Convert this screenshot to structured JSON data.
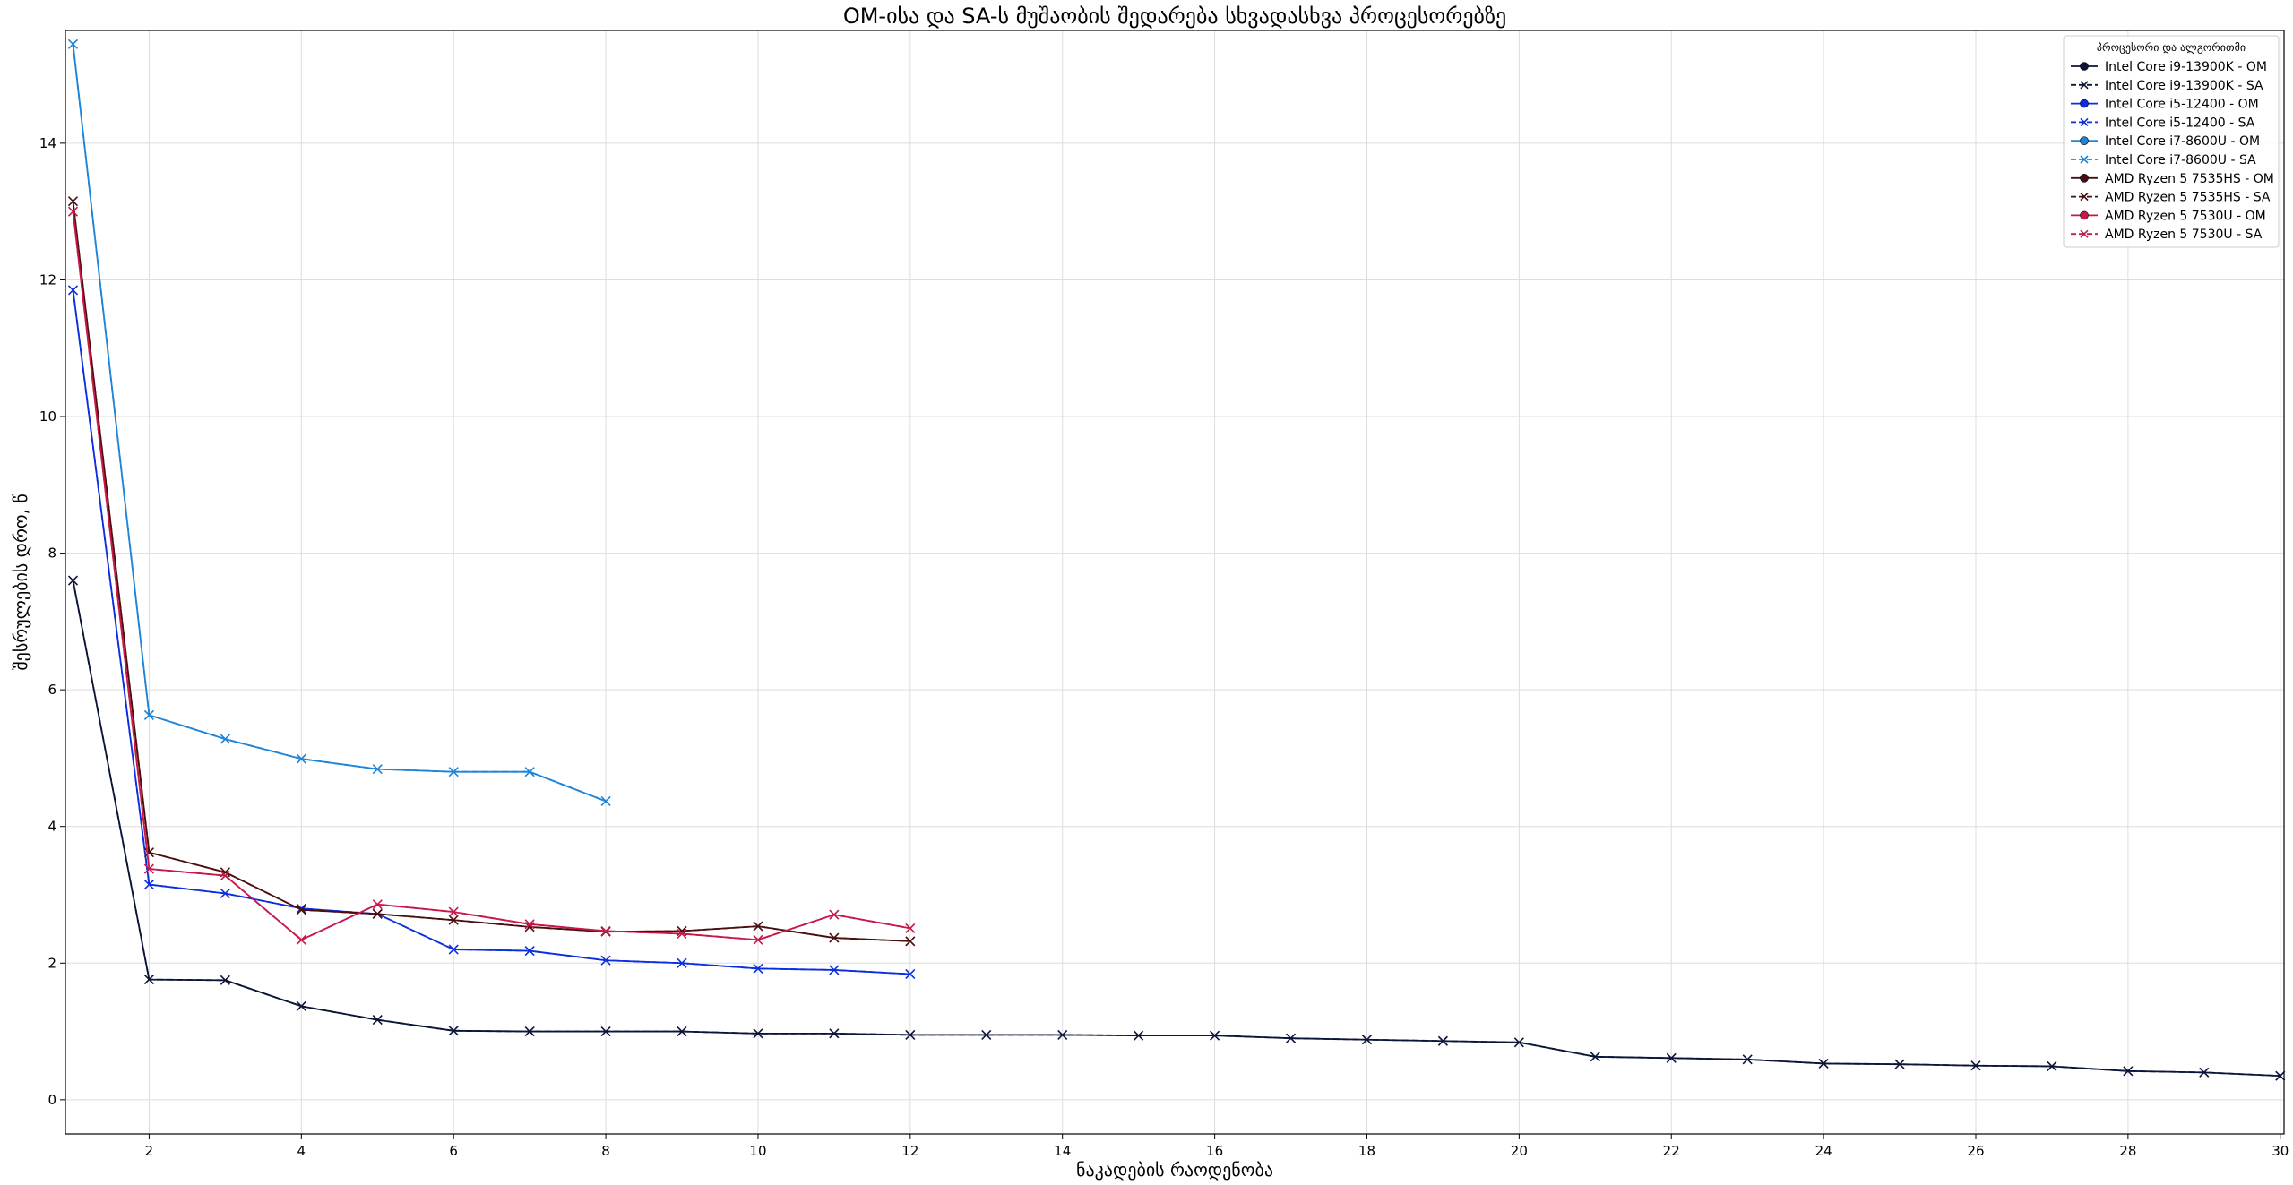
{
  "chart_data": {
    "type": "line",
    "title": "OM-ისა და SA-ს მუშაობის შედარება სხვადასხვა პროცესორებზე",
    "xlabel": "ნაკადების რაოდენობა",
    "ylabel": "შესრულების დრო, წ",
    "xlim": [
      0.9,
      30.05
    ],
    "ylim": [
      -0.5,
      15.65
    ],
    "xticks": [
      2,
      4,
      6,
      8,
      10,
      12,
      14,
      16,
      18,
      20,
      22,
      24,
      26,
      28,
      30
    ],
    "yticks": [
      0,
      2,
      4,
      6,
      8,
      10,
      12,
      14
    ],
    "grid": true,
    "legend": {
      "title": "პროცესორი და ალგორითმი",
      "placement": "top-right"
    },
    "series": [
      {
        "name": "Intel Core i9-13900K - OM",
        "color": "#0b1538",
        "marker": "circle",
        "dashed": false,
        "x": [
          1,
          2,
          3,
          4,
          5,
          6,
          7,
          8,
          9,
          10,
          11,
          12,
          13,
          14,
          15,
          16,
          17,
          18,
          19,
          20,
          21,
          22,
          23,
          24,
          25,
          26,
          27,
          28,
          29,
          30
        ],
        "y": [
          7.6,
          1.76,
          1.75,
          1.37,
          1.17,
          1.01,
          1.0,
          1.0,
          1.0,
          0.97,
          0.97,
          0.95,
          0.95,
          0.95,
          0.94,
          0.94,
          0.9,
          0.88,
          0.86,
          0.84,
          0.63,
          0.61,
          0.59,
          0.53,
          0.52,
          0.5,
          0.49,
          0.42,
          0.4,
          0.35
        ]
      },
      {
        "name": "Intel Core i9-13900K - SA",
        "color": "#0b1538",
        "marker": "x",
        "dashed": true,
        "x": [
          1,
          2,
          3,
          4,
          5,
          6,
          7,
          8,
          9,
          10,
          11,
          12,
          13,
          14,
          15,
          16,
          17,
          18,
          19,
          20,
          21,
          22,
          23,
          24,
          25,
          26,
          27,
          28,
          29,
          30
        ],
        "y": [
          7.6,
          1.76,
          1.75,
          1.37,
          1.17,
          1.01,
          1.0,
          1.0,
          1.0,
          0.97,
          0.97,
          0.95,
          0.95,
          0.95,
          0.94,
          0.94,
          0.9,
          0.88,
          0.86,
          0.84,
          0.63,
          0.61,
          0.59,
          0.53,
          0.52,
          0.5,
          0.49,
          0.42,
          0.4,
          0.35
        ]
      },
      {
        "name": "Intel Core i5-12400 - OM",
        "color": "#0a2ee0",
        "marker": "circle",
        "dashed": false,
        "x": [
          1,
          2,
          3,
          4,
          5,
          6,
          7,
          8,
          9,
          10,
          11,
          12
        ],
        "y": [
          11.85,
          3.15,
          3.02,
          2.8,
          2.72,
          2.2,
          2.18,
          2.04,
          2.0,
          1.92,
          1.9,
          1.84
        ]
      },
      {
        "name": "Intel Core i5-12400 - SA",
        "color": "#0a2ee0",
        "marker": "x",
        "dashed": true,
        "x": [
          1,
          2,
          3,
          4,
          5,
          6,
          7,
          8,
          9,
          10,
          11,
          12
        ],
        "y": [
          11.85,
          3.15,
          3.02,
          2.8,
          2.72,
          2.2,
          2.18,
          2.04,
          2.0,
          1.92,
          1.9,
          1.84
        ]
      },
      {
        "name": "Intel Core i7-8600U - OM",
        "color": "#1e84d8",
        "marker": "circle",
        "dashed": false,
        "x": [
          1,
          2,
          3,
          4,
          5,
          6,
          7,
          8
        ],
        "y": [
          15.45,
          5.63,
          5.28,
          4.99,
          4.84,
          4.8,
          4.8,
          4.37
        ]
      },
      {
        "name": "Intel Core i7-8600U - SA",
        "color": "#1e84d8",
        "marker": "x",
        "dashed": true,
        "x": [
          1,
          2,
          3,
          4,
          5,
          6,
          7,
          8
        ],
        "y": [
          15.45,
          5.63,
          5.28,
          4.99,
          4.84,
          4.8,
          4.8,
          4.37
        ]
      },
      {
        "name": "AMD Ryzen 5 7535HS - OM",
        "color": "#4a0e0e",
        "marker": "circle",
        "dashed": false,
        "x": [
          1,
          2,
          3,
          4,
          5,
          6,
          7,
          8,
          9,
          10,
          11,
          12
        ],
        "y": [
          13.15,
          3.62,
          3.33,
          2.78,
          2.72,
          2.63,
          2.53,
          2.46,
          2.47,
          2.54,
          2.37,
          2.32
        ]
      },
      {
        "name": "AMD Ryzen 5 7535HS - SA",
        "color": "#4a0e0e",
        "marker": "x",
        "dashed": true,
        "x": [
          1,
          2,
          3,
          4,
          5,
          6,
          7,
          8,
          9,
          10,
          11,
          12
        ],
        "y": [
          13.15,
          3.62,
          3.33,
          2.78,
          2.72,
          2.63,
          2.53,
          2.46,
          2.47,
          2.54,
          2.37,
          2.32
        ]
      },
      {
        "name": "AMD Ryzen 5 7530U - OM",
        "color": "#c8184a",
        "marker": "circle",
        "dashed": false,
        "x": [
          1,
          2,
          3,
          4,
          5,
          6,
          7,
          8,
          9,
          10,
          11,
          12
        ],
        "y": [
          13.0,
          3.38,
          3.28,
          2.34,
          2.86,
          2.75,
          2.57,
          2.47,
          2.43,
          2.34,
          2.71,
          2.51
        ]
      },
      {
        "name": "AMD Ryzen 5 7530U - SA",
        "color": "#c8184a",
        "marker": "x",
        "dashed": true,
        "x": [
          1,
          2,
          3,
          4,
          5,
          6,
          7,
          8,
          9,
          10,
          11,
          12
        ],
        "y": [
          13.0,
          3.38,
          3.28,
          2.34,
          2.86,
          2.75,
          2.57,
          2.47,
          2.43,
          2.34,
          2.71,
          2.51
        ]
      }
    ]
  }
}
